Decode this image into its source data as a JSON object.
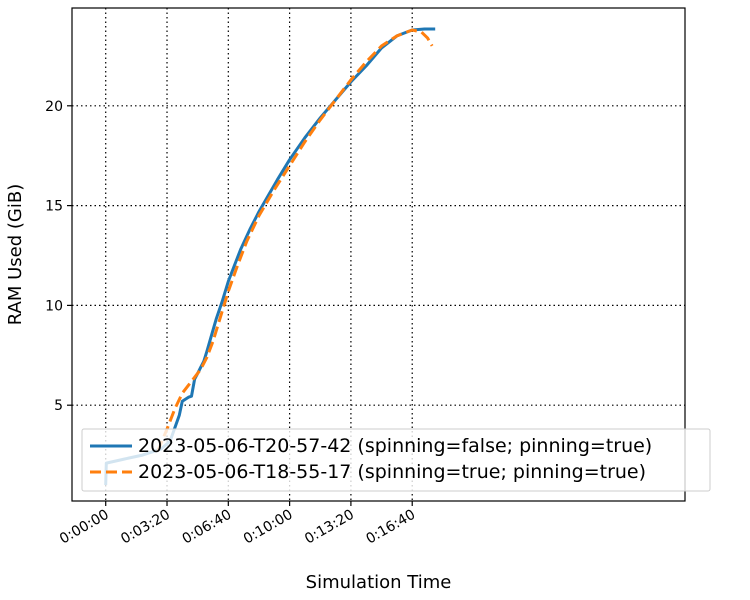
{
  "chart_data": {
    "type": "line",
    "title": "",
    "xlabel": "Simulation Time",
    "ylabel": "RAM Used (GiB)",
    "x_unit": "seconds",
    "xlim": [
      -110,
      1890
    ],
    "ylim": [
      0.2,
      24.9
    ],
    "x_ticks": [
      0,
      200,
      400,
      600,
      800,
      1000
    ],
    "x_tick_labels": [
      "0:00:00",
      "0:03:20",
      "0:06:40",
      "0:10:00",
      "0:13:20",
      "0:16:40"
    ],
    "y_ticks": [
      5,
      10,
      15,
      20
    ],
    "y_tick_labels": [
      "5",
      "10",
      "15",
      "20"
    ],
    "grid": true,
    "legend_position": "lower-left",
    "series": [
      {
        "name": "2023-05-06-T20-57-42 (spinning=false; pinning=true)",
        "color": "#1f77b4",
        "style": "solid",
        "x": [
          0,
          2,
          60,
          120,
          180,
          210,
          240,
          250,
          260,
          270,
          280,
          290,
          300,
          310,
          320,
          330,
          345,
          360,
          380,
          400,
          420,
          440,
          470,
          500,
          530,
          560,
          600,
          650,
          700,
          750,
          800,
          850,
          900,
          950,
          1000,
          1040,
          1075
        ],
        "y": [
          1.0,
          2.1,
          2.3,
          2.5,
          2.8,
          3.2,
          4.5,
          5.2,
          5.3,
          5.4,
          5.45,
          6.3,
          6.6,
          6.9,
          7.2,
          7.7,
          8.5,
          9.3,
          10.2,
          11.2,
          12.0,
          12.8,
          13.8,
          14.7,
          15.5,
          16.3,
          17.3,
          18.4,
          19.4,
          20.3,
          21.2,
          22.0,
          22.9,
          23.5,
          23.8,
          23.85,
          23.85
        ]
      },
      {
        "name": "2023-05-06-T18-55-17 (spinning=true; pinning=true)",
        "color": "#ff7f0e",
        "style": "dashed",
        "x": [
          170,
          200,
          225,
          250,
          270,
          290,
          310,
          330,
          350,
          370,
          400,
          430,
          460,
          500,
          550,
          600,
          650,
          700,
          750,
          800,
          850,
          900,
          950,
          1000,
          1030,
          1050,
          1065
        ],
        "y": [
          2.7,
          3.8,
          4.8,
          5.6,
          6.0,
          6.4,
          6.8,
          7.4,
          8.2,
          9.2,
          10.7,
          12.0,
          13.2,
          14.5,
          15.8,
          17.0,
          18.2,
          19.3,
          20.3,
          21.3,
          22.2,
          23.0,
          23.5,
          23.8,
          23.7,
          23.4,
          23.0
        ]
      }
    ]
  }
}
